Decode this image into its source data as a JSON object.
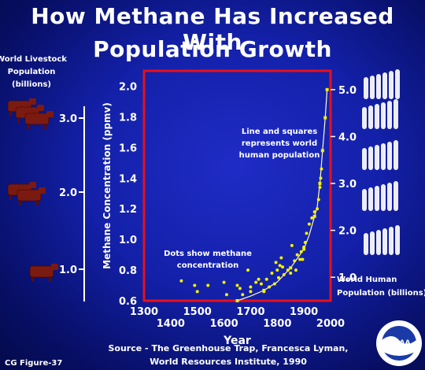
{
  "title_line1": "How Methane Has Increased With",
  "title_line2": "Population Growth",
  "left_axis_label": [
    "World Livestock",
    "Population",
    "(billions)"
  ],
  "livestock_ticks": [
    "3.0",
    "2.0",
    "1.0"
  ],
  "right_axis_label": [
    "World Human",
    "Population (billions)"
  ],
  "annotations": {
    "line_and_squares": [
      "Line and squares",
      "represents world",
      "human population"
    ],
    "dots": [
      "Dots show methane",
      "concentration"
    ]
  },
  "source": [
    "Source - The Greenhouse Trap, Francesca Lyman,",
    "World Resources Institute, 1990"
  ],
  "figure_label": "CG Figure-37",
  "logo_text": "NOAA",
  "colors": {
    "frame": "#e8101a",
    "dots": "#f4f000",
    "curve": "#fffcc8",
    "text": "#ffffff"
  },
  "chart_data": {
    "type": "scatter",
    "title": "How Methane Has Increased With Population Growth",
    "xlabel": "Year",
    "ylabel": "Methane Concentration (ppmv)",
    "y2label": "World Human Population (billions)",
    "xlim": [
      1300,
      2000
    ],
    "ylim": [
      0.6,
      2.1
    ],
    "y2lim": [
      0.5,
      5.4
    ],
    "xticks_top": [
      "1300",
      "1500",
      "1700",
      "1900"
    ],
    "xticks_top_values": [
      1300,
      1500,
      1700,
      1900
    ],
    "xticks_bottom": [
      "1400",
      "1600",
      "1800",
      "2000"
    ],
    "xticks_bottom_values": [
      1400,
      1600,
      1800,
      2000
    ],
    "yticks": [
      "0.6",
      "0.8",
      "1.0",
      "1.2",
      "1.4",
      "1.6",
      "1.8",
      "2.0"
    ],
    "yticks_values": [
      0.6,
      0.8,
      1.0,
      1.2,
      1.4,
      1.6,
      1.8,
      2.0
    ],
    "y2ticks": [
      "1.0",
      "2.0",
      "3.0",
      "4.0",
      "5.0"
    ],
    "y2ticks_values": [
      1.0,
      2.0,
      3.0,
      4.0,
      5.0
    ],
    "methane_dots": [
      {
        "x": 1440,
        "y": 0.73
      },
      {
        "x": 1490,
        "y": 0.7
      },
      {
        "x": 1500,
        "y": 0.66
      },
      {
        "x": 1540,
        "y": 0.7
      },
      {
        "x": 1600,
        "y": 0.72
      },
      {
        "x": 1610,
        "y": 0.64
      },
      {
        "x": 1650,
        "y": 0.7
      },
      {
        "x": 1660,
        "y": 0.68
      },
      {
        "x": 1670,
        "y": 0.64
      },
      {
        "x": 1690,
        "y": 0.8
      },
      {
        "x": 1700,
        "y": 0.66
      },
      {
        "x": 1700,
        "y": 0.69
      },
      {
        "x": 1720,
        "y": 0.72
      },
      {
        "x": 1730,
        "y": 0.74
      },
      {
        "x": 1740,
        "y": 0.71
      },
      {
        "x": 1750,
        "y": 0.66
      },
      {
        "x": 1760,
        "y": 0.74
      },
      {
        "x": 1770,
        "y": 0.69
      },
      {
        "x": 1780,
        "y": 0.78
      },
      {
        "x": 1790,
        "y": 0.71
      },
      {
        "x": 1795,
        "y": 0.85
      },
      {
        "x": 1800,
        "y": 0.8
      },
      {
        "x": 1805,
        "y": 0.75
      },
      {
        "x": 1810,
        "y": 0.83
      },
      {
        "x": 1815,
        "y": 0.88
      },
      {
        "x": 1820,
        "y": 0.82
      },
      {
        "x": 1825,
        "y": 0.77
      },
      {
        "x": 1840,
        "y": 0.8
      },
      {
        "x": 1850,
        "y": 0.78
      },
      {
        "x": 1855,
        "y": 0.96
      },
      {
        "x": 1865,
        "y": 0.86
      },
      {
        "x": 1870,
        "y": 0.8
      },
      {
        "x": 1875,
        "y": 0.9
      },
      {
        "x": 1885,
        "y": 0.87
      },
      {
        "x": 1890,
        "y": 0.92
      },
      {
        "x": 1895,
        "y": 0.87
      },
      {
        "x": 1900,
        "y": 0.95
      },
      {
        "x": 1905,
        "y": 0.98
      },
      {
        "x": 1910,
        "y": 1.04
      },
      {
        "x": 1920,
        "y": 1.1
      },
      {
        "x": 1930,
        "y": 1.14
      },
      {
        "x": 1940,
        "y": 1.18
      },
      {
        "x": 1950,
        "y": 1.2
      },
      {
        "x": 1955,
        "y": 1.26
      },
      {
        "x": 1960,
        "y": 1.34
      },
      {
        "x": 1963,
        "y": 1.4
      },
      {
        "x": 1966,
        "y": 1.46
      }
    ],
    "population_curve": [
      {
        "x": 1650,
        "y": 0.5
      },
      {
        "x": 1700,
        "y": 0.6
      },
      {
        "x": 1750,
        "y": 0.72
      },
      {
        "x": 1800,
        "y": 0.9
      },
      {
        "x": 1850,
        "y": 1.2
      },
      {
        "x": 1900,
        "y": 1.6
      },
      {
        "x": 1920,
        "y": 1.9
      },
      {
        "x": 1940,
        "y": 2.3
      },
      {
        "x": 1950,
        "y": 2.5
      },
      {
        "x": 1960,
        "y": 3.0
      },
      {
        "x": 1970,
        "y": 3.7
      },
      {
        "x": 1980,
        "y": 4.4
      },
      {
        "x": 1987,
        "y": 5.0
      }
    ],
    "population_squares": [
      {
        "x": 1650,
        "y": 0.5
      },
      {
        "x": 1750,
        "y": 0.72
      },
      {
        "x": 1850,
        "y": 1.2
      },
      {
        "x": 1900,
        "y": 1.6
      },
      {
        "x": 1940,
        "y": 2.3
      },
      {
        "x": 1960,
        "y": 3.0
      },
      {
        "x": 1970,
        "y": 3.7
      },
      {
        "x": 1980,
        "y": 4.4
      },
      {
        "x": 1987,
        "y": 5.0
      }
    ]
  }
}
